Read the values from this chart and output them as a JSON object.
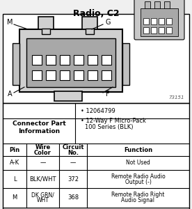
{
  "title": "Radio, C2",
  "background_color": "#f0f0f0",
  "diagram_bg": "#ffffff",
  "connector_part_label": "Connector Part\nInformation",
  "connector_part_info": [
    "12064799",
    "12-Way F Micro-Pack\n100 Series (BLK)"
  ],
  "table_headers": [
    "Pin",
    "Wire\nColor",
    "Circuit\nNo.",
    "Function"
  ],
  "table_rows": [
    [
      "A-K",
      "—",
      "—",
      "Not Used"
    ],
    [
      "L",
      "BLK/WHT",
      "372",
      "Remote Radio Audio\nOutput (-)"
    ],
    [
      "M",
      "DK GRN/\nWHT",
      "368",
      "Remote Radio Right\nAudio Signal"
    ]
  ],
  "corner_labels": [
    "M",
    "G",
    "A",
    "F"
  ],
  "stamp": "73151",
  "fig_width": 2.76,
  "fig_height": 3.0,
  "dpi": 100
}
